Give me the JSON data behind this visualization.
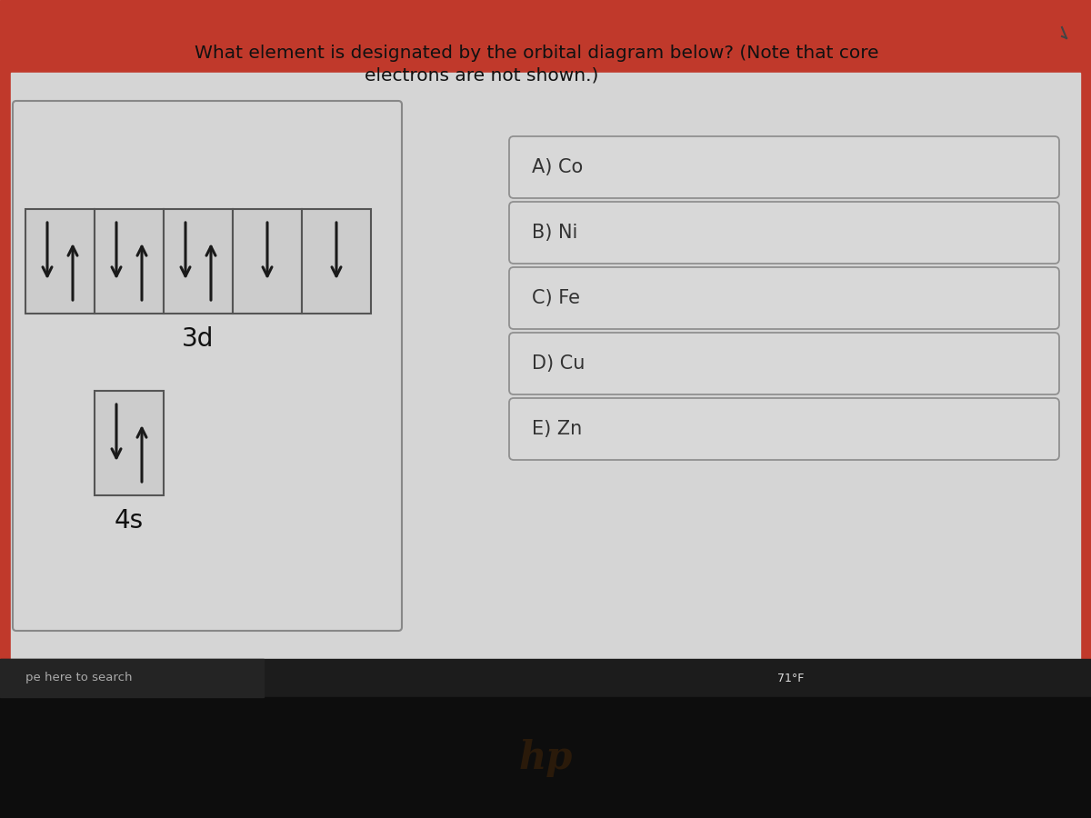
{
  "title_line1": "What element is designated by the orbital diagram below? (Note that core",
  "title_line2": "electrons are not shown.)",
  "orbital_3d_label": "3d",
  "orbital_4s_label": "4s",
  "choices": [
    "A) Co",
    "B) Ni",
    "C) Fe",
    "D) Cu",
    "E) Zn"
  ],
  "bg_top_red": "#c0392b",
  "bg_screen": "#d6d6d6",
  "bg_taskbar": "#1c1c1c",
  "bg_laptop": "#0a0a0a",
  "bg_search": "#262626",
  "arrow_color": "#1a1a1a",
  "box_face": "#d2d2d2",
  "box_edge": "#666666",
  "outer_box_edge": "#888888",
  "choice_face": "#d8d8d8",
  "choice_edge": "#888888",
  "text_color": "#222222",
  "title_fontsize": 14.5,
  "label_fontsize": 20,
  "choice_fontsize": 15,
  "taskbar_text": "pe here to search",
  "taskbar_temp": "71°F"
}
